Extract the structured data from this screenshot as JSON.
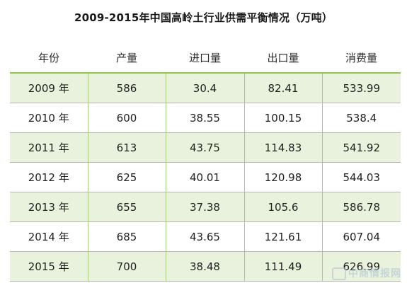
{
  "chart_data": {
    "type": "table",
    "title": "2009-2015年中国高岭土行业供需平衡情况（万吨）",
    "columns": [
      "年份",
      "产量",
      "进口量",
      "出口量",
      "消费量"
    ],
    "rows": [
      [
        "2009 年",
        "586",
        "30.4",
        "82.41",
        "533.99"
      ],
      [
        "2010 年",
        "600",
        "38.55",
        "100.15",
        "538.4"
      ],
      [
        "2011 年",
        "613",
        "43.75",
        "114.83",
        "541.92"
      ],
      [
        "2012 年",
        "625",
        "40.01",
        "120.98",
        "544.03"
      ],
      [
        "2013 年",
        "655",
        "37.38",
        "105.6",
        "586.78"
      ],
      [
        "2014 年",
        "685",
        "43.65",
        "121.61",
        "607.04"
      ],
      [
        "2015 年",
        "700",
        "38.48",
        "111.49",
        "626.99"
      ]
    ]
  },
  "colors": {
    "band": "#e9f2dd",
    "border": "#a6cc7a",
    "header_rule": "#8fc34a"
  },
  "watermark": {
    "text": "中商情报网"
  }
}
